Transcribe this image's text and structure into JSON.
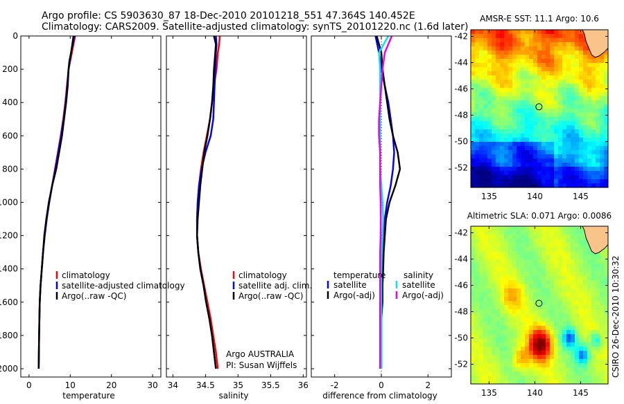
{
  "header": {
    "title_line1": "Argo profile: CS 5903630_87 18-Dec-2010 20101218_551 47.364S 140.452E",
    "title_line2": "Climatology: CARS2009. Satellite-adjusted climatology: synTS_20101220.nc (1.6d later)"
  },
  "colors": {
    "red": "#ff0000",
    "blue": "#0000ff",
    "black": "#000000",
    "cyan": "#00e5ee",
    "magenta": "#ee00ee"
  },
  "chart_data": [
    {
      "type": "line",
      "id": "temperature",
      "xlabel": "temperature",
      "xlim": [
        -2,
        32
      ],
      "xticks": [
        0,
        10,
        20,
        30
      ],
      "ylim": [
        2050,
        0
      ],
      "yticks": [
        0,
        200,
        400,
        600,
        800,
        1000,
        1200,
        1400,
        1600,
        1800,
        2000
      ],
      "legend": [
        "climatology",
        "satellite-adjusted climatology",
        "Argo(..raw -QC)"
      ],
      "series": [
        {
          "name": "climatology",
          "color": "red",
          "x": [
            11.2,
            10.8,
            10.4,
            10.0,
            9.6,
            9.2,
            8.8,
            8.3,
            7.7,
            7.0,
            6.3,
            5.6,
            4.9,
            4.3,
            3.8,
            3.4,
            3.1,
            2.8,
            2.6,
            2.45,
            2.35
          ],
          "y": [
            0,
            50,
            100,
            150,
            200,
            300,
            400,
            500,
            600,
            700,
            800,
            900,
            1000,
            1100,
            1200,
            1300,
            1400,
            1500,
            1600,
            1800,
            2000
          ]
        },
        {
          "name": "satellite-adjusted climatology",
          "color": "blue",
          "x": [
            11.0,
            10.6,
            10.2,
            9.9,
            9.6,
            9.3,
            8.9,
            8.4,
            7.8,
            7.1,
            6.4,
            5.6,
            4.9,
            4.3,
            3.8,
            3.4,
            3.1,
            2.8,
            2.6,
            2.45,
            2.35
          ],
          "y": [
            0,
            50,
            100,
            150,
            200,
            300,
            400,
            500,
            600,
            700,
            800,
            900,
            1000,
            1100,
            1200,
            1300,
            1400,
            1500,
            1600,
            1800,
            2000
          ]
        },
        {
          "name": "Argo(..raw -QC)",
          "color": "black",
          "x": [
            10.8,
            10.5,
            10.2,
            9.8,
            9.6,
            9.4,
            9.0,
            8.5,
            8.0,
            7.3,
            6.6,
            5.6,
            4.8,
            4.2,
            3.7,
            3.4,
            3.1,
            2.8,
            2.6,
            2.45,
            2.35
          ],
          "y": [
            0,
            50,
            100,
            150,
            200,
            300,
            400,
            500,
            600,
            700,
            800,
            900,
            1000,
            1100,
            1200,
            1300,
            1400,
            1500,
            1600,
            1800,
            2000
          ]
        }
      ]
    },
    {
      "type": "line",
      "id": "salinity",
      "xlabel": "salinity",
      "xlim": [
        33.9,
        36.05
      ],
      "xticks": [
        34,
        34.5,
        35,
        35.5,
        36
      ],
      "ylim": [
        2050,
        0
      ],
      "yticks": [
        0,
        200,
        400,
        600,
        800,
        1000,
        1200,
        1400,
        1600,
        1800,
        2000
      ],
      "legend": [
        "climatology",
        "satellite adj. clim.",
        "Argo(..raw -QC)"
      ],
      "annotation": [
        "Argo AUSTRALIA",
        "PI: Susan Wijffels"
      ],
      "series": [
        {
          "name": "climatology",
          "color": "red",
          "x": [
            34.72,
            34.71,
            34.69,
            34.67,
            34.63,
            34.6,
            34.57,
            34.52,
            34.47,
            34.43,
            34.4,
            34.38,
            34.37,
            34.37,
            34.39,
            34.43,
            34.48,
            34.53,
            34.58,
            34.62,
            34.66,
            34.69
          ],
          "y": [
            0,
            50,
            100,
            200,
            300,
            400,
            500,
            600,
            700,
            800,
            900,
            1000,
            1100,
            1200,
            1300,
            1400,
            1500,
            1600,
            1700,
            1800,
            1900,
            2000
          ]
        },
        {
          "name": "satellite adj. clim.",
          "color": "blue",
          "x": [
            34.66,
            34.67,
            34.66,
            34.65,
            34.64,
            34.63,
            34.62,
            34.58,
            34.5,
            34.44,
            34.4,
            34.38,
            34.37,
            34.37,
            34.39,
            34.42,
            34.47,
            34.51,
            34.56,
            34.6,
            34.63,
            34.66
          ],
          "y": [
            0,
            50,
            100,
            200,
            300,
            400,
            500,
            600,
            700,
            800,
            900,
            1000,
            1100,
            1200,
            1300,
            1400,
            1500,
            1600,
            1700,
            1800,
            1900,
            2000
          ]
        },
        {
          "name": "Argo(..raw -QC)",
          "color": "black",
          "x": [
            34.63,
            34.66,
            34.65,
            34.63,
            34.62,
            34.6,
            34.57,
            34.53,
            34.48,
            34.45,
            34.42,
            34.4,
            34.38,
            34.37,
            34.39,
            34.42,
            34.47,
            34.51,
            34.56,
            34.6,
            34.63,
            34.66
          ],
          "y": [
            0,
            50,
            100,
            200,
            300,
            400,
            500,
            600,
            700,
            800,
            900,
            1000,
            1100,
            1200,
            1300,
            1400,
            1500,
            1600,
            1700,
            1800,
            1900,
            2000
          ]
        }
      ]
    },
    {
      "type": "line",
      "id": "difference",
      "xlabel": "difference from climatology",
      "xlim": [
        -3,
        3
      ],
      "xticks": [
        -2,
        0,
        2
      ],
      "ylim": [
        2050,
        0
      ],
      "yticks": [
        0,
        200,
        400,
        600,
        800,
        1000,
        1200,
        1400,
        1600,
        1800,
        2000
      ],
      "legend_left_title": "temperature",
      "legend_right_title": "salinity",
      "legend": [
        "satellite",
        "Argo(-adj)",
        "satellite",
        "Argo(-adj)"
      ],
      "series": [
        {
          "name": "temperature satellite",
          "color": "blue",
          "x": [
            -0.25,
            -0.1,
            0.0,
            0.15,
            0.3,
            0.4,
            0.5,
            0.55,
            0.5,
            0.4,
            0.25,
            0.15,
            0.1,
            0.05,
            0.0,
            0.0,
            -0.05,
            -0.05,
            -0.05,
            -0.05
          ],
          "y": [
            0,
            100,
            200,
            300,
            400,
            500,
            600,
            700,
            800,
            900,
            1000,
            1100,
            1200,
            1300,
            1400,
            1500,
            1600,
            1700,
            1800,
            2000
          ]
        },
        {
          "name": "temperature Argo(-adj)",
          "color": "black",
          "x": [
            -0.2,
            0.0,
            0.05,
            0.15,
            0.25,
            0.35,
            0.5,
            0.7,
            0.8,
            0.6,
            0.35,
            0.2,
            0.15,
            0.1,
            0.08,
            0.05,
            0.05,
            0.0,
            0.0,
            0.0
          ],
          "y": [
            0,
            100,
            200,
            300,
            400,
            500,
            600,
            700,
            800,
            900,
            1000,
            1100,
            1200,
            1300,
            1400,
            1500,
            1600,
            1700,
            1800,
            2000
          ]
        },
        {
          "name": "salinity satellite",
          "color": "cyan",
          "x": [
            0.3,
            -0.1,
            -0.05,
            -0.05,
            -0.05,
            -0.05,
            -0.05,
            -0.05,
            -0.05,
            0.0,
            0.05,
            0.08,
            0.05,
            0.02,
            0.0,
            0.0,
            0.0,
            0.0,
            0.0,
            0.0
          ],
          "y": [
            0,
            100,
            200,
            300,
            400,
            500,
            600,
            700,
            800,
            900,
            1000,
            1100,
            1200,
            1300,
            1400,
            1500,
            1600,
            1700,
            1800,
            2000
          ]
        },
        {
          "name": "salinity Argo(-adj)",
          "color": "magenta",
          "x": [
            0.45,
            0.15,
            0.05,
            0.0,
            -0.05,
            -0.1,
            -0.1,
            -0.05,
            -0.05,
            -0.05,
            -0.03,
            -0.02,
            -0.03,
            -0.05,
            -0.05,
            -0.05,
            -0.05,
            -0.05,
            -0.05,
            -0.05
          ],
          "y": [
            0,
            100,
            200,
            300,
            400,
            500,
            600,
            700,
            800,
            900,
            1000,
            1100,
            1200,
            1300,
            1400,
            1500,
            1600,
            1700,
            1800,
            2000
          ]
        }
      ]
    },
    {
      "type": "heatmap",
      "id": "sst-map",
      "title": "AMSR-E SST: 11.1 Argo: 10.6",
      "xlim": [
        133,
        148
      ],
      "ylim": [
        -53.5,
        -41.5
      ],
      "xticks": [
        135,
        140,
        145
      ],
      "yticks": [
        -42,
        -44,
        -46,
        -48,
        -50,
        -52
      ],
      "marker": {
        "lon": 140.452,
        "lat": -47.364
      }
    },
    {
      "type": "heatmap",
      "id": "sla-map",
      "title": "Altimetric SLA: 0.071 Argo: 0.0086",
      "xlim": [
        133,
        148
      ],
      "ylim": [
        -53.5,
        -41.5
      ],
      "xticks": [
        135,
        140,
        145
      ],
      "yticks": [
        -42,
        -44,
        -46,
        -48,
        -50,
        -52
      ],
      "marker": {
        "lon": 140.452,
        "lat": -47.364
      }
    }
  ],
  "footer": {
    "stamp": "CSIRO 26-Dec-2010 10:30:32"
  }
}
